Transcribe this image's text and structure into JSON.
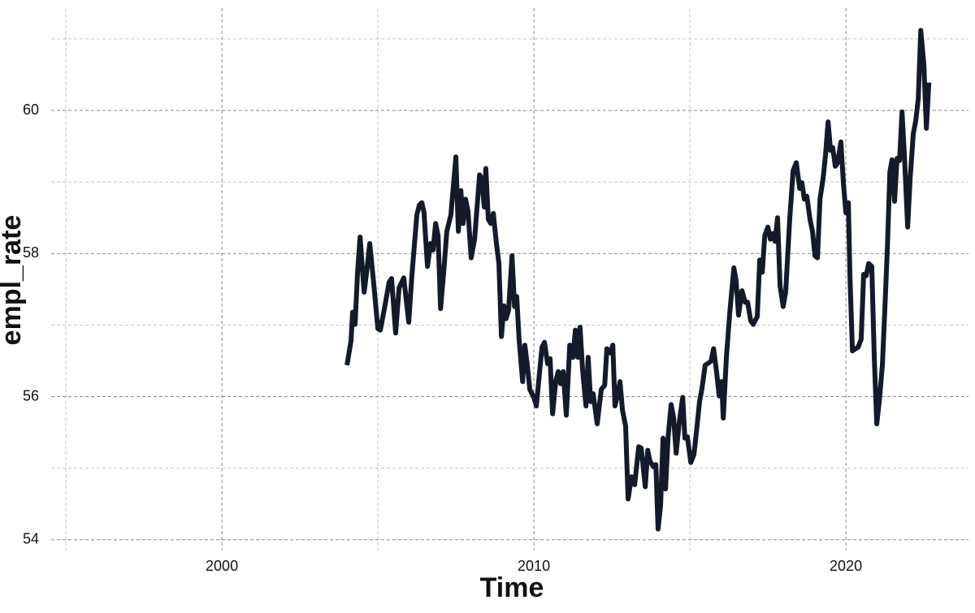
{
  "chart_data": {
    "type": "line",
    "x_label": "Time",
    "y_label": "empl_rate",
    "xlim": [
      1994.53,
      2023.93
    ],
    "ylim": [
      53.85,
      61.43
    ],
    "xticks": [
      2000,
      2010,
      2020
    ],
    "yticks": [
      54,
      56,
      58,
      60
    ],
    "x_minor_ticks": [
      1995,
      2005,
      2015
    ],
    "y_minor_ticks": [
      55,
      57,
      59,
      61
    ],
    "grid": true,
    "series": [
      {
        "name": "empl_rate",
        "color": "#131a2a",
        "x": [
          2004.01,
          2004.14,
          2004.19,
          2004.27,
          2004.35,
          2004.43,
          2004.56,
          2004.64,
          2004.74,
          2004.87,
          2005.0,
          2005.08,
          2005.21,
          2005.36,
          2005.44,
          2005.57,
          2005.68,
          2005.83,
          2005.99,
          2006.09,
          2006.25,
          2006.33,
          2006.41,
          2006.48,
          2006.59,
          2006.69,
          2006.77,
          2006.85,
          2006.93,
          2007.01,
          2007.11,
          2007.21,
          2007.34,
          2007.5,
          2007.58,
          2007.66,
          2007.73,
          2007.81,
          2007.89,
          2007.99,
          2008.1,
          2008.18,
          2008.26,
          2008.33,
          2008.41,
          2008.46,
          2008.54,
          2008.62,
          2008.7,
          2008.8,
          2008.88,
          2008.96,
          2009.04,
          2009.11,
          2009.19,
          2009.3,
          2009.38,
          2009.45,
          2009.53,
          2009.64,
          2009.71,
          2009.79,
          2009.87,
          2010.0,
          2010.08,
          2010.18,
          2010.26,
          2010.34,
          2010.44,
          2010.52,
          2010.6,
          2010.7,
          2010.78,
          2010.86,
          2010.94,
          2011.04,
          2011.15,
          2011.25,
          2011.33,
          2011.41,
          2011.48,
          2011.56,
          2011.67,
          2011.74,
          2011.82,
          2011.9,
          2012.03,
          2012.16,
          2012.27,
          2012.34,
          2012.45,
          2012.53,
          2012.6,
          2012.68,
          2012.76,
          2012.84,
          2012.94,
          2013.02,
          2013.13,
          2013.23,
          2013.36,
          2013.44,
          2013.57,
          2013.65,
          2013.72,
          2013.83,
          2013.91,
          2013.98,
          2014.06,
          2014.14,
          2014.22,
          2014.3,
          2014.4,
          2014.48,
          2014.56,
          2014.66,
          2014.77,
          2014.84,
          2014.92,
          2015.03,
          2015.13,
          2015.23,
          2015.31,
          2015.39,
          2015.49,
          2015.6,
          2015.68,
          2015.76,
          2015.86,
          2015.94,
          2016.02,
          2016.07,
          2016.17,
          2016.28,
          2016.41,
          2016.48,
          2016.56,
          2016.67,
          2016.77,
          2016.85,
          2016.95,
          2017.03,
          2017.16,
          2017.24,
          2017.32,
          2017.4,
          2017.5,
          2017.58,
          2017.66,
          2017.73,
          2017.81,
          2017.89,
          2017.99,
          2018.07,
          2018.2,
          2018.31,
          2018.41,
          2018.52,
          2018.59,
          2018.67,
          2018.75,
          2018.85,
          2018.93,
          2019.01,
          2019.09,
          2019.17,
          2019.27,
          2019.35,
          2019.43,
          2019.51,
          2019.58,
          2019.66,
          2019.74,
          2019.84,
          2019.92,
          2020.0,
          2020.08,
          2020.13,
          2020.21,
          2020.31,
          2020.39,
          2020.49,
          2020.57,
          2020.65,
          2020.73,
          2020.83,
          2020.91,
          2020.99,
          2021.07,
          2021.17,
          2021.25,
          2021.33,
          2021.41,
          2021.48,
          2021.56,
          2021.64,
          2021.72,
          2021.8,
          2021.88,
          2021.98,
          2022.06,
          2022.16,
          2022.24,
          2022.32,
          2022.4,
          2022.5,
          2022.58,
          2022.66
        ],
        "values": [
          56.44,
          56.78,
          57.18,
          57.01,
          57.74,
          58.23,
          57.46,
          57.74,
          58.14,
          57.57,
          56.95,
          56.93,
          57.23,
          57.6,
          57.65,
          56.89,
          57.52,
          57.66,
          57.04,
          57.69,
          58.54,
          58.68,
          58.71,
          58.57,
          57.82,
          58.14,
          58.05,
          58.42,
          58.25,
          57.23,
          57.74,
          58.31,
          58.54,
          59.35,
          58.31,
          58.88,
          58.42,
          58.76,
          58.59,
          57.94,
          58.2,
          58.65,
          59.1,
          59.05,
          58.65,
          59.19,
          58.48,
          58.42,
          58.56,
          58.14,
          57.86,
          56.84,
          57.27,
          57.09,
          57.21,
          57.97,
          57.26,
          57.4,
          56.78,
          56.21,
          56.72,
          56.44,
          56.1,
          55.99,
          55.87,
          56.33,
          56.69,
          56.76,
          56.46,
          56.53,
          55.76,
          56.21,
          56.35,
          56.18,
          56.35,
          55.74,
          56.72,
          56.55,
          56.93,
          56.55,
          56.97,
          56.38,
          55.87,
          56.55,
          55.93,
          56.04,
          55.62,
          56.1,
          56.16,
          56.67,
          56.61,
          56.72,
          55.87,
          56.02,
          56.21,
          55.81,
          55.59,
          54.57,
          54.88,
          54.77,
          55.3,
          55.28,
          54.74,
          55.25,
          55.1,
          55.02,
          55.05,
          54.15,
          54.47,
          55.42,
          54.71,
          55.42,
          55.89,
          55.7,
          55.21,
          55.64,
          55.99,
          55.42,
          55.44,
          55.08,
          55.19,
          55.59,
          55.93,
          56.12,
          56.44,
          56.47,
          56.5,
          56.67,
          56.33,
          56.01,
          56.21,
          55.7,
          56.55,
          57.18,
          57.8,
          57.63,
          57.14,
          57.48,
          57.32,
          57.32,
          57.06,
          57.01,
          57.12,
          57.91,
          57.74,
          58.25,
          58.37,
          58.2,
          58.28,
          58.17,
          58.5,
          57.55,
          57.26,
          57.46,
          58.48,
          59.16,
          59.27,
          58.91,
          58.99,
          58.76,
          58.8,
          58.48,
          58.31,
          57.97,
          57.94,
          58.76,
          59.05,
          59.39,
          59.84,
          59.44,
          59.48,
          59.22,
          59.27,
          59.56,
          58.99,
          58.57,
          58.71,
          57.69,
          56.64,
          56.67,
          56.69,
          56.8,
          57.71,
          57.69,
          57.86,
          57.82,
          56.55,
          55.62,
          55.93,
          56.44,
          57.23,
          58.08,
          59.14,
          59.31,
          58.73,
          59.33,
          59.3,
          59.98,
          59.33,
          58.37,
          59.05,
          59.67,
          59.86,
          60.16,
          61.12,
          60.64,
          59.75,
          60.39
        ]
      }
    ]
  }
}
